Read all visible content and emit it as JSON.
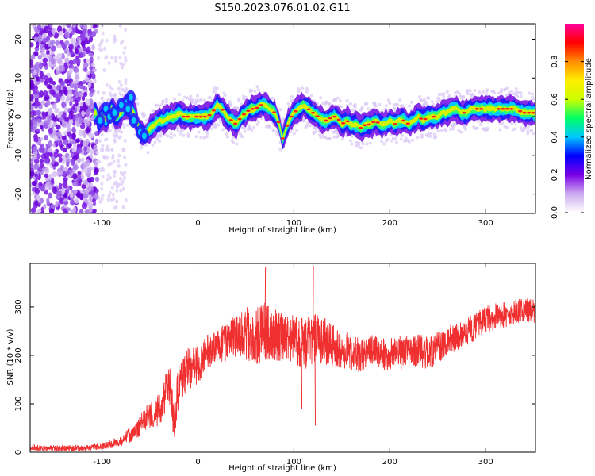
{
  "figure": {
    "title": "S150.2023.076.01.02.G11"
  },
  "chart_data": [
    {
      "type": "heatmap",
      "xlabel": "Height of straight line (km)",
      "ylabel": "Frequency (Hz)",
      "xlim": [
        -175,
        352
      ],
      "ylim": [
        -25,
        24
      ],
      "x_ticks": [
        -100,
        0,
        100,
        200,
        300
      ],
      "y_ticks": [
        -20,
        -10,
        0,
        10,
        20
      ],
      "grid": false,
      "ridge_frequency": {
        "x": [
          -105,
          -100,
          -95,
          -90,
          -85,
          -80,
          -75,
          -70,
          -65,
          -60,
          -55,
          -50,
          -45,
          -40,
          -35,
          -30,
          -25,
          -20,
          -15,
          -10,
          -5,
          0,
          5,
          10,
          15,
          20,
          25,
          30,
          35,
          40,
          45,
          50,
          55,
          60,
          65,
          70,
          75,
          80,
          85,
          88,
          92,
          95,
          100,
          105,
          110,
          115,
          120,
          125,
          130,
          135,
          140,
          145,
          150,
          155,
          160,
          165,
          170,
          175,
          180,
          185,
          190,
          195,
          200,
          205,
          210,
          215,
          220,
          225,
          230,
          235,
          240,
          245,
          250,
          255,
          260,
          265,
          270,
          275,
          280,
          285,
          290,
          300,
          310,
          320,
          330,
          340,
          350
        ],
        "y": [
          -2,
          0,
          -1,
          2,
          0,
          1,
          3,
          2,
          0,
          -4,
          -5,
          -3,
          -2,
          -1,
          -1,
          0,
          0,
          1,
          0,
          0,
          0,
          0,
          0,
          0,
          1,
          3,
          2,
          0,
          -1,
          -2,
          0,
          1,
          2,
          2,
          3,
          3,
          2,
          1,
          -2,
          -6,
          -3,
          -1,
          1,
          2,
          3,
          2,
          1,
          0,
          -1,
          -1,
          0,
          0,
          -2,
          -1,
          -2,
          -2,
          -3,
          -2,
          -2,
          -1,
          -2,
          -2,
          -1,
          -2,
          -1,
          -1,
          -2,
          -1,
          0,
          -1,
          0,
          0,
          0,
          1,
          1,
          2,
          2,
          1,
          1,
          2,
          2,
          2,
          2,
          2,
          2,
          1,
          1
        ]
      },
      "colorbar": {
        "label": "Normalized spectral amplitude",
        "range": [
          0,
          1
        ],
        "ticks": [
          "0.0",
          "0.2",
          "0.4",
          "0.6",
          "0.8"
        ],
        "colors": [
          "#ffffff",
          "#ccaaee",
          "#7a00e6",
          "#0000ff",
          "#00c8ff",
          "#00ff66",
          "#ccff00",
          "#ffee00",
          "#ff8c00",
          "#ff0000",
          "#ff0099"
        ]
      }
    },
    {
      "type": "line",
      "xlabel": "Height of straight line (km)",
      "ylabel": "SNR (10 * v/v)",
      "xlim": [
        -175,
        352
      ],
      "ylim": [
        0,
        390
      ],
      "x_ticks": [
        -100,
        0,
        100,
        200,
        300
      ],
      "y_ticks": [
        0,
        100,
        200,
        300
      ],
      "grid": false,
      "series": [
        {
          "color": "#f03030",
          "x": [
            -175,
            -150,
            -120,
            -100,
            -85,
            -75,
            -65,
            -55,
            -45,
            -38,
            -33,
            -29,
            -25,
            -20,
            -10,
            0,
            10,
            20,
            30,
            40,
            50,
            60,
            70,
            80,
            90,
            100,
            110,
            120,
            130,
            140,
            150,
            160,
            170,
            180,
            190,
            200,
            210,
            220,
            230,
            240,
            250,
            260,
            270,
            280,
            290,
            300,
            310,
            320,
            330,
            340,
            352
          ],
          "values": [
            10,
            8,
            8,
            12,
            20,
            30,
            45,
            70,
            80,
            95,
            130,
            140,
            60,
            140,
            175,
            180,
            205,
            220,
            228,
            238,
            245,
            240,
            250,
            245,
            235,
            235,
            225,
            240,
            230,
            220,
            215,
            205,
            200,
            210,
            205,
            200,
            205,
            205,
            210,
            205,
            215,
            230,
            240,
            250,
            260,
            275,
            280,
            285,
            290,
            295,
            290
          ],
          "noise_amplitude": [
            6,
            6,
            6,
            6,
            10,
            15,
            20,
            25,
            30,
            35,
            40,
            45,
            40,
            45,
            45,
            40,
            38,
            35,
            40,
            45,
            55,
            60,
            60,
            55,
            50,
            50,
            55,
            60,
            50,
            45,
            40,
            40,
            35,
            35,
            35,
            35,
            35,
            35,
            35,
            35,
            35,
            30,
            30,
            30,
            28,
            28,
            28,
            28,
            25,
            25,
            25
          ]
        }
      ],
      "spikes": [
        {
          "x": 70,
          "y": 382
        },
        {
          "x": 120,
          "y": 385
        },
        {
          "x": 122,
          "y": 55
        },
        {
          "x": 108,
          "y": 90
        }
      ]
    }
  ]
}
